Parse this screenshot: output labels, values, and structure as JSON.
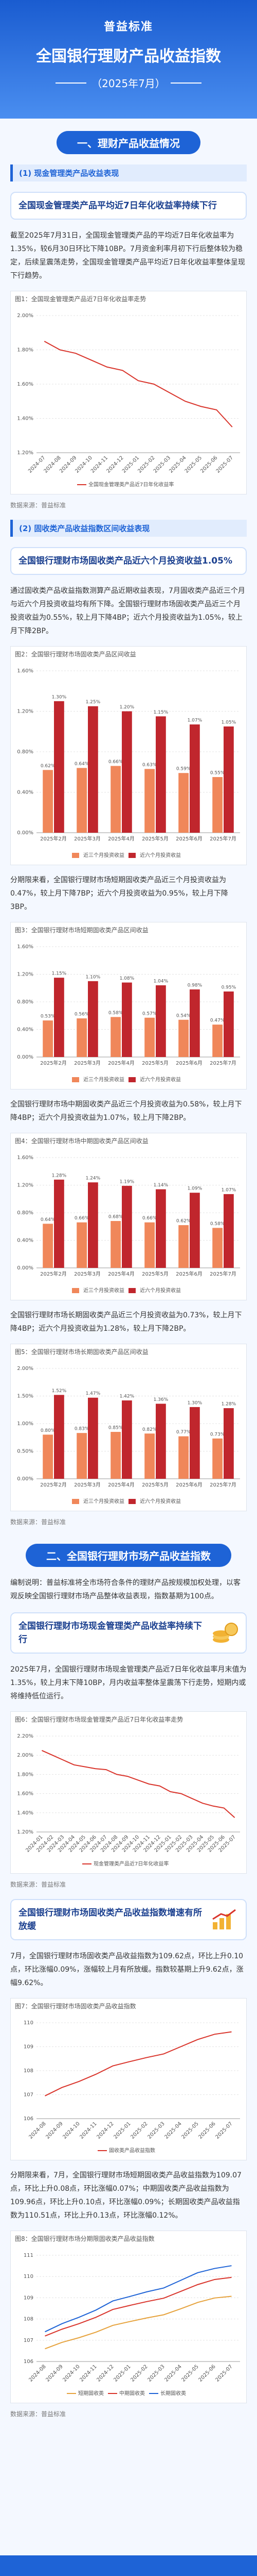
{
  "header": {
    "brand": "普益标准",
    "title": "全国银行理财产品收益指数",
    "period": "（2025年7月）"
  },
  "source": "数据来源：普益标准",
  "part1": {
    "title": "一、理财产品收益情况",
    "cash": {
      "label": "(1) 现金管理类产品收益表现",
      "headline": "全国现金管理类产品平均近7日年化收益率持续下行",
      "text": "截至2025年7月31日，全国现金管理类产品的平均近7日年化收益率为1.35%，较6月30日环比下降10BP。7月资金利率月初下行后整体较为稳定，后续呈震荡走势，全国现金管理类产品平均近7日年化收益率整体呈现下行趋势。"
    },
    "fixed": {
      "label": "(2) 固收类产品收益指数区间收益表现",
      "headline": "全国银行理财市场固收类产品近六个月投资收益1.05%",
      "text": "通过固收类产品收益指数测算产品近期收益表现，7月固收类产品近三个月与近六个月投资收益均有所下降。全国银行理财市场固收类产品近三个月投资收益为0.55%，较上月下降4BP；近六个月投资收益为1.05%，较上月下降2BP。",
      "short_text": "分期限来看，全国银行理财市场短期固收类产品近三个月投资收益为0.47%，较上月下降7BP；近六个月投资收益为0.95%，较上月下降3BP。",
      "mid_text": "全国银行理财市场中期固收类产品近三个月投资收益为0.58%，较上月下降4BP；近六个月投资收益为1.07%，较上月下降2BP。",
      "long_text": "全国银行理财市场长期固收类产品近三个月投资收益为0.73%，较上月下降4BP；近六个月投资收益为1.28%，较上月下降2BP。"
    }
  },
  "part2": {
    "title": "二、全国银行理财市场产品收益指数",
    "intro": "编制说明：普益标准将全市场符合条件的理财产品按规模加权处理，以客观反映全国银行理财市场产品整体收益表现，指数基期为100点。",
    "cash_headline": "全国银行理财市场现金管理类产品收益率持续下行",
    "cash_text": "2025年7月，全国银行理财市场现金管理类产品近7日年化收益率月末值为1.35%，较上月末下降10BP，月内收益率整体呈震荡下行走势，短期内或将维持低位运行。",
    "fixed_headline": "全国银行理财市场固收类产品收益指数增速有所放缓",
    "fixed_text": "7月，全国银行理财市场固收类产品收益指数为109.62点，环比上升0.10点，环比涨幅0.09%，涨幅较上月有所放缓。指数较基期上升9.62点，涨幅9.62%。",
    "term_text": "分期限来看，7月，全国银行理财市场短期固收类产品收益指数为109.07点，环比上升0.08点，环比涨幅0.07%；中期固收类产品收益指数为109.96点，环比上升0.10点，环比涨幅0.09%；长期固收类产品收益指数为110.51点，环比上升0.13点，环比涨幅0.12%。"
  },
  "chart_data": [
    {
      "type": "line",
      "title": "图1：全国现金管理类产品近7日年化收益率走势",
      "categories": [
        "2024-07",
        "2024-08",
        "2024-09",
        "2024-10",
        "2024-11",
        "2024-12",
        "2025-01",
        "2025-02",
        "2025-03",
        "2025-04",
        "2025-05",
        "2025-06",
        "2025-07"
      ],
      "series": [
        {
          "name": "全国现金管理类产品近7日年化收益率",
          "color": "#d9342b",
          "values": [
            1.85,
            1.8,
            1.78,
            1.74,
            1.7,
            1.68,
            1.62,
            1.6,
            1.55,
            1.5,
            1.47,
            1.45,
            1.35
          ]
        }
      ],
      "ylim": [
        1.2,
        2.0
      ],
      "yticks": [
        {
          "value": 1.2,
          "label": "1.20%"
        },
        {
          "value": 1.4,
          "label": "1.40%"
        },
        {
          "value": 1.6,
          "label": "1.60%"
        },
        {
          "value": 1.8,
          "label": "1.80%"
        },
        {
          "value": 2.0,
          "label": "2.00%"
        }
      ],
      "grid": true
    },
    {
      "type": "bar",
      "title": "图2：全国银行理财市场固收类产品区间收益",
      "categories": [
        "2025年2月",
        "2025年3月",
        "2025年4月",
        "2025年5月",
        "2025年6月",
        "2025年7月"
      ],
      "series": [
        {
          "name": "近三个月投资收益",
          "color": "#f0875a",
          "values": [
            0.62,
            0.64,
            0.66,
            0.63,
            0.59,
            0.55
          ],
          "value_labels": [
            "0.62%",
            "0.64%",
            "0.66%",
            "0.63%",
            "0.59%",
            "0.55%"
          ]
        },
        {
          "name": "近六个月投资收益",
          "color": "#c0262d",
          "values": [
            1.3,
            1.25,
            1.2,
            1.15,
            1.07,
            1.05
          ],
          "value_labels": [
            "1.30%",
            "1.25%",
            "1.20%",
            "1.15%",
            "1.07%",
            "1.05%"
          ]
        }
      ],
      "ylim": [
        0,
        1.6
      ],
      "yticks": [
        {
          "value": 0,
          "label": "0.00%"
        },
        {
          "value": 0.4,
          "label": "0.40%"
        },
        {
          "value": 0.8,
          "label": "0.80%"
        },
        {
          "value": 1.2,
          "label": "1.20%"
        },
        {
          "value": 1.6,
          "label": "1.60%"
        }
      ],
      "grid": true
    },
    {
      "type": "bar",
      "title": "图3：全国银行理财市场短期固收类产品区间收益",
      "categories": [
        "2025年2月",
        "2025年3月",
        "2025年4月",
        "2025年5月",
        "2025年6月",
        "2025年7月"
      ],
      "series": [
        {
          "name": "近三个月投资收益",
          "color": "#f0875a",
          "values": [
            0.53,
            0.56,
            0.58,
            0.57,
            0.54,
            0.47
          ],
          "value_labels": [
            "0.53%",
            "0.56%",
            "0.58%",
            "0.57%",
            "0.54%",
            "0.47%"
          ]
        },
        {
          "name": "近六个月投资收益",
          "color": "#c0262d",
          "values": [
            1.15,
            1.1,
            1.08,
            1.04,
            0.98,
            0.95
          ],
          "value_labels": [
            "1.15%",
            "1.10%",
            "1.08%",
            "1.04%",
            "0.98%",
            "0.95%"
          ]
        }
      ],
      "ylim": [
        0,
        1.6
      ],
      "yticks": [
        {
          "value": 0,
          "label": "0.00%"
        },
        {
          "value": 0.4,
          "label": "0.40%"
        },
        {
          "value": 0.8,
          "label": "0.80%"
        },
        {
          "value": 1.2,
          "label": "1.20%"
        },
        {
          "value": 1.6,
          "label": "1.60%"
        }
      ],
      "grid": true
    },
    {
      "type": "bar",
      "title": "图4：全国银行理财市场中期固收类产品区间收益",
      "categories": [
        "2025年2月",
        "2025年3月",
        "2025年4月",
        "2025年5月",
        "2025年6月",
        "2025年7月"
      ],
      "series": [
        {
          "name": "近三个月投资收益",
          "color": "#f0875a",
          "values": [
            0.64,
            0.66,
            0.68,
            0.66,
            0.62,
            0.58
          ],
          "value_labels": [
            "0.64%",
            "0.66%",
            "0.68%",
            "0.66%",
            "0.62%",
            "0.58%"
          ]
        },
        {
          "name": "近六个月投资收益",
          "color": "#c0262d",
          "values": [
            1.28,
            1.24,
            1.19,
            1.14,
            1.09,
            1.07
          ],
          "value_labels": [
            "1.28%",
            "1.24%",
            "1.19%",
            "1.14%",
            "1.09%",
            "1.07%"
          ]
        }
      ],
      "ylim": [
        0,
        1.6
      ],
      "yticks": [
        {
          "value": 0,
          "label": "0.00%"
        },
        {
          "value": 0.4,
          "label": "0.40%"
        },
        {
          "value": 0.8,
          "label": "0.80%"
        },
        {
          "value": 1.2,
          "label": "1.20%"
        },
        {
          "value": 1.6,
          "label": "1.60%"
        }
      ],
      "grid": true
    },
    {
      "type": "bar",
      "title": "图5：全国银行理财市场长期固收类产品区间收益",
      "categories": [
        "2025年2月",
        "2025年3月",
        "2025年4月",
        "2025年5月",
        "2025年6月",
        "2025年7月"
      ],
      "series": [
        {
          "name": "近三个月投资收益",
          "color": "#f0875a",
          "values": [
            0.8,
            0.83,
            0.85,
            0.82,
            0.77,
            0.73
          ],
          "value_labels": [
            "0.80%",
            "0.83%",
            "0.85%",
            "0.82%",
            "0.77%",
            "0.73%"
          ]
        },
        {
          "name": "近六个月投资收益",
          "color": "#c0262d",
          "values": [
            1.52,
            1.47,
            1.42,
            1.36,
            1.3,
            1.28
          ],
          "value_labels": [
            "1.52%",
            "1.47%",
            "1.42%",
            "1.36%",
            "1.30%",
            "1.28%"
          ]
        }
      ],
      "ylim": [
        0,
        2.0
      ],
      "yticks": [
        {
          "value": 0,
          "label": "0.00%"
        },
        {
          "value": 0.5,
          "label": "0.50%"
        },
        {
          "value": 1.0,
          "label": "1.00%"
        },
        {
          "value": 1.5,
          "label": "1.50%"
        },
        {
          "value": 2.0,
          "label": "2.00%"
        }
      ],
      "grid": true
    },
    {
      "type": "line",
      "title": "图6：全国银行理财市场现金管理类产品近7日年化收益率走势",
      "categories": [
        "2024-01",
        "2024-02",
        "2024-03",
        "2024-04",
        "2024-05",
        "2024-06",
        "2024-07",
        "2024-08",
        "2024-09",
        "2024-10",
        "2024-11",
        "2024-12",
        "2025-01",
        "2025-02",
        "2025-03",
        "2025-04",
        "2025-05",
        "2025-06",
        "2025-07"
      ],
      "series": [
        {
          "name": "现金管理类产品近7日年化收益率",
          "color": "#d9342b",
          "values": [
            2.05,
            2.0,
            1.95,
            1.9,
            1.88,
            1.86,
            1.85,
            1.8,
            1.78,
            1.74,
            1.7,
            1.68,
            1.62,
            1.6,
            1.55,
            1.5,
            1.47,
            1.45,
            1.35
          ]
        }
      ],
      "ylim": [
        1.2,
        2.2
      ],
      "yticks": [
        {
          "value": 1.2,
          "label": "1.20%"
        },
        {
          "value": 1.4,
          "label": "1.40%"
        },
        {
          "value": 1.6,
          "label": "1.60%"
        },
        {
          "value": 1.8,
          "label": "1.80%"
        },
        {
          "value": 2.0,
          "label": "2.00%"
        },
        {
          "value": 2.2,
          "label": "2.20%"
        }
      ],
      "grid": true
    },
    {
      "type": "line",
      "title": "图7：全国银行理财市场固收类产品收益指数",
      "categories": [
        "2024-08",
        "2024-09",
        "2024-10",
        "2024-11",
        "2024-12",
        "2025-01",
        "2025-02",
        "2025-03",
        "2025-04",
        "2025-05",
        "2025-06",
        "2025-07"
      ],
      "series": [
        {
          "name": "固收类产品收益指数",
          "color": "#d9342b",
          "values": [
            106.95,
            107.3,
            107.55,
            107.85,
            108.2,
            108.38,
            108.55,
            108.7,
            109.0,
            109.3,
            109.52,
            109.62
          ]
        }
      ],
      "ylim": [
        106,
        110
      ],
      "yticks": [
        106,
        107,
        108,
        109,
        110
      ],
      "grid": true
    },
    {
      "type": "line",
      "title": "图8：全国银行理财市场分期限固收类产品收益指数",
      "categories": [
        "2024-08",
        "2024-09",
        "2024-10",
        "2024-11",
        "2024-12",
        "2025-01",
        "2025-02",
        "2025-03",
        "2025-04",
        "2025-05",
        "2025-06",
        "2025-07"
      ],
      "series": [
        {
          "name": "短期固收类",
          "color": "#e6a23c",
          "values": [
            106.6,
            106.9,
            107.12,
            107.38,
            107.7,
            107.88,
            108.05,
            108.2,
            108.48,
            108.78,
            108.99,
            109.07
          ]
        },
        {
          "name": "中期固收类",
          "color": "#d9342b",
          "values": [
            107.2,
            107.52,
            107.78,
            108.08,
            108.45,
            108.64,
            108.82,
            108.98,
            109.3,
            109.62,
            109.86,
            109.96
          ]
        },
        {
          "name": "长期固收类",
          "color": "#1e63d6",
          "values": [
            107.4,
            107.78,
            108.08,
            108.42,
            108.85,
            109.06,
            109.28,
            109.46,
            109.82,
            110.18,
            110.38,
            110.51
          ]
        }
      ],
      "ylim": [
        106,
        111
      ],
      "yticks": [
        106,
        107,
        108,
        109,
        110,
        111
      ],
      "grid": true
    }
  ]
}
